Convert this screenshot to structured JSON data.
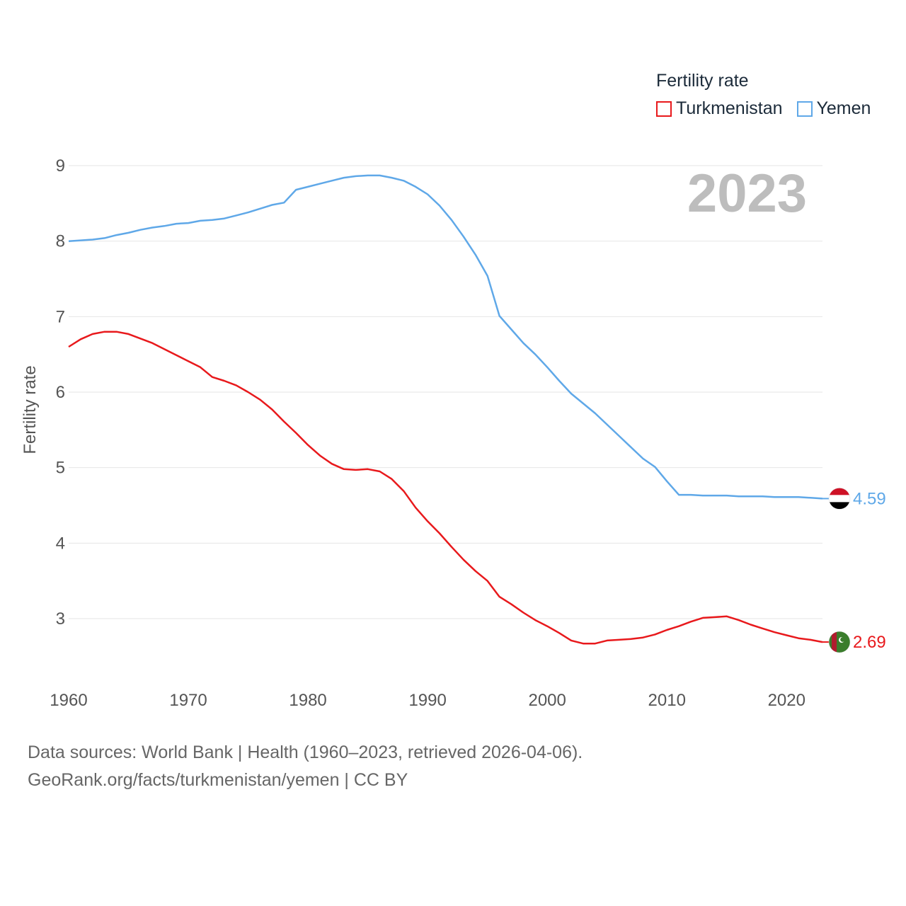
{
  "legend": {
    "title": "Fertility rate",
    "items": [
      {
        "label": "Turkmenistan",
        "color": "#e8191c"
      },
      {
        "label": "Yemen",
        "color": "#5fa8e8"
      }
    ]
  },
  "year_stamp": "2023",
  "footer": {
    "line1": "Data sources: World Bank | Health (1960–2023, retrieved 2026-04-06).",
    "line2": "GeoRank.org/facts/turkmenistan/yemen | CC BY"
  },
  "chart_data": {
    "type": "line",
    "title": "Fertility rate",
    "xlabel": "",
    "ylabel": "Fertility rate",
    "xlim": [
      1960,
      2023
    ],
    "ylim": [
      2.4,
      9.0
    ],
    "x_ticks": [
      1960,
      1970,
      1980,
      1990,
      2000,
      2010,
      2020
    ],
    "y_ticks": [
      3,
      4,
      5,
      6,
      7,
      8,
      9
    ],
    "grid": true,
    "x": [
      1960,
      1961,
      1962,
      1963,
      1964,
      1965,
      1966,
      1967,
      1968,
      1969,
      1970,
      1971,
      1972,
      1973,
      1974,
      1975,
      1976,
      1977,
      1978,
      1979,
      1980,
      1981,
      1982,
      1983,
      1984,
      1985,
      1986,
      1987,
      1988,
      1989,
      1990,
      1991,
      1992,
      1993,
      1994,
      1995,
      1996,
      1997,
      1998,
      1999,
      2000,
      2001,
      2002,
      2003,
      2004,
      2005,
      2006,
      2007,
      2008,
      2009,
      2010,
      2011,
      2012,
      2013,
      2014,
      2015,
      2016,
      2017,
      2018,
      2019,
      2020,
      2021,
      2022,
      2023
    ],
    "series": [
      {
        "name": "Turkmenistan",
        "color": "#e8191c",
        "end_label": "2.69",
        "values": [
          6.6,
          6.7,
          6.77,
          6.8,
          6.8,
          6.77,
          6.71,
          6.65,
          6.57,
          6.49,
          6.41,
          6.33,
          6.2,
          6.15,
          6.09,
          6.0,
          5.9,
          5.77,
          5.61,
          5.46,
          5.3,
          5.16,
          5.05,
          4.98,
          4.97,
          4.98,
          4.95,
          4.85,
          4.69,
          4.47,
          4.29,
          4.13,
          3.95,
          3.78,
          3.63,
          3.5,
          3.29,
          3.19,
          3.08,
          2.98,
          2.9,
          2.81,
          2.71,
          2.67,
          2.67,
          2.71,
          2.72,
          2.73,
          2.75,
          2.79,
          2.85,
          2.9,
          2.96,
          3.01,
          3.02,
          3.03,
          2.98,
          2.92,
          2.87,
          2.82,
          2.78,
          2.74,
          2.72,
          2.69
        ]
      },
      {
        "name": "Yemen",
        "color": "#5fa8e8",
        "end_label": "4.59",
        "values": [
          8.0,
          8.01,
          8.02,
          8.04,
          8.08,
          8.11,
          8.15,
          8.18,
          8.2,
          8.23,
          8.24,
          8.27,
          8.28,
          8.3,
          8.34,
          8.38,
          8.43,
          8.48,
          8.51,
          8.68,
          8.72,
          8.76,
          8.8,
          8.84,
          8.86,
          8.87,
          8.87,
          8.84,
          8.8,
          8.72,
          8.62,
          8.47,
          8.28,
          8.06,
          7.82,
          7.54,
          7.01,
          6.83,
          6.65,
          6.5,
          6.33,
          6.15,
          5.98,
          5.85,
          5.72,
          5.57,
          5.42,
          5.27,
          5.12,
          5.01,
          4.82,
          4.64,
          4.64,
          4.63,
          4.63,
          4.63,
          4.62,
          4.62,
          4.62,
          4.61,
          4.61,
          4.61,
          4.6,
          4.59
        ]
      }
    ]
  }
}
